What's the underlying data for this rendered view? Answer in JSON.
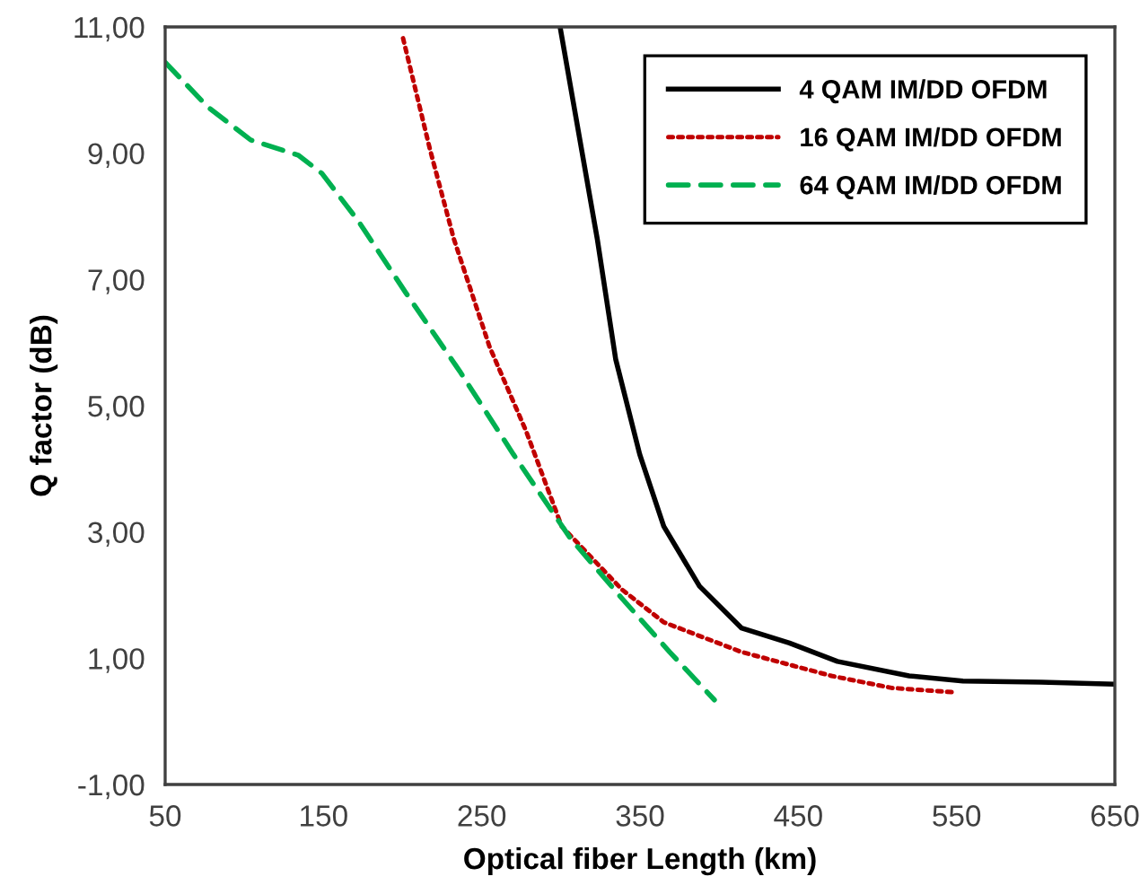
{
  "chart_data": {
    "type": "line",
    "xlabel": "Optical fiber Length (km)",
    "ylabel": "Q factor (dB)",
    "xlim": [
      50,
      650
    ],
    "xticks": [
      50,
      150,
      250,
      350,
      450,
      550,
      650
    ],
    "ylim": [
      -1,
      11
    ],
    "yticks": [
      {
        "value": -1,
        "label": "-1,00"
      },
      {
        "value": 1,
        "label": "1,00"
      },
      {
        "value": 3,
        "label": "3,00"
      },
      {
        "value": 5,
        "label": "5,00"
      },
      {
        "value": 7,
        "label": "7,00"
      },
      {
        "value": 9,
        "label": "9,00"
      },
      {
        "value": 11,
        "label": "11,00"
      }
    ],
    "grid": false,
    "legend": "top right",
    "marker": "none",
    "series": [
      {
        "name": "4 QAM IM/DD OFDM",
        "color": "#000000",
        "line_style": "solid",
        "x": [
          299.5,
          323,
          334.6,
          349.8,
          365,
          387.6,
          414,
          444.4,
          474.7,
          520,
          554,
          603.4,
          649.6
        ],
        "values": [
          11,
          7.64,
          5.74,
          4.23,
          3.09,
          2.14,
          1.48,
          1.24,
          0.95,
          0.72,
          0.64,
          0.62,
          0.59
        ]
      },
      {
        "name": "16 QAM IM/DD OFDM",
        "color": "#c00000",
        "line_style": "dotted",
        "x": [
          200.3,
          217.3,
          232.4,
          255,
          278,
          300.5,
          338.5,
          365,
          414,
          471,
          509,
          548.6
        ],
        "values": [
          10.82,
          9.06,
          7.64,
          5.93,
          4.6,
          3.09,
          2.09,
          1.57,
          1.1,
          0.72,
          0.53,
          0.46
        ]
      },
      {
        "name": "64 QAM IM/DD OFDM",
        "color": "#00b050",
        "line_style": "dashed",
        "x": [
          50,
          77,
          104,
          134,
          149,
          171.9,
          202,
          236,
          270,
          306,
          338.5,
          368.7,
          397
        ],
        "values": [
          10.44,
          9.73,
          9.21,
          8.97,
          8.68,
          7.93,
          6.79,
          5.55,
          4.23,
          2.9,
          1.95,
          1.1,
          0.34
        ]
      }
    ]
  }
}
